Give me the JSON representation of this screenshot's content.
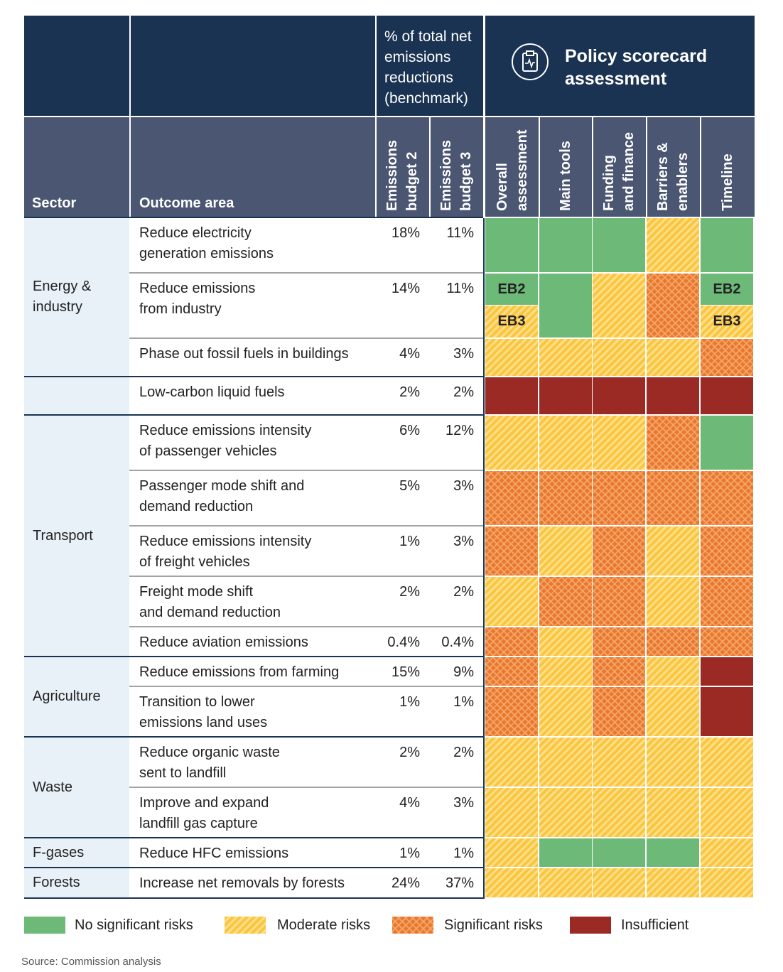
{
  "header": {
    "benchmark": [
      "% of total net",
      "emissions",
      "reductions",
      "(benchmark)"
    ],
    "scorecard": [
      "Policy scorecard",
      "assessment"
    ],
    "columns": [
      [
        "Sector"
      ],
      [
        "Outcome area"
      ],
      [
        "Emissions",
        "budget 2"
      ],
      [
        "Emissions",
        "budget 3"
      ],
      [
        "Overall",
        "assessment"
      ],
      [
        "Main tools"
      ],
      [
        "Funding",
        "and finance"
      ],
      [
        "Barriers &",
        "enablers"
      ],
      [
        "Timeline"
      ]
    ]
  },
  "sectors": [
    {
      "name": [
        "Energy &",
        "industry"
      ],
      "rows": [
        {
          "outcome": [
            "Reduce electricity",
            "generation emissions"
          ],
          "eb2": "18%",
          "eb3": "11%",
          "assessment": [
            0,
            0,
            0,
            1,
            0
          ]
        },
        {
          "outcome": [
            "Reduce emissions",
            "from industry"
          ],
          "eb2": "14%",
          "eb3": "11%",
          "assessment": [
            [
              {
                "label": "EB2",
                "rating": 0
              },
              {
                "label": "EB3",
                "rating": 1
              }
            ],
            0,
            1,
            2,
            [
              {
                "label": "EB2",
                "rating": 0
              },
              {
                "label": "EB3",
                "rating": 1
              }
            ]
          ]
        },
        {
          "outcome": [
            "Phase out fossil fuels in buildings"
          ],
          "eb2": "4%",
          "eb3": "3%",
          "assessment": [
            1,
            1,
            1,
            1,
            2
          ]
        }
      ]
    },
    {
      "rows": [
        {
          "outcome": [
            "Low-carbon liquid fuels"
          ],
          "eb2": "2%",
          "eb3": "2%",
          "assessment": [
            3,
            3,
            3,
            3,
            3
          ]
        }
      ]
    },
    {
      "name": [
        "Transport"
      ],
      "rows": [
        {
          "outcome": [
            "Reduce emissions intensity",
            "of passenger vehicles"
          ],
          "eb2": "6%",
          "eb3": "12%",
          "assessment": [
            1,
            1,
            1,
            2,
            0
          ]
        },
        {
          "outcome": [
            "Passenger mode shift and",
            "demand reduction"
          ],
          "eb2": "5%",
          "eb3": "3%",
          "assessment": [
            2,
            2,
            2,
            2,
            2
          ]
        },
        {
          "outcome": [
            "Reduce emissions intensity",
            "of freight vehicles"
          ],
          "eb2": "1%",
          "eb3": "3%",
          "assessment": [
            2,
            1,
            2,
            1,
            2
          ]
        },
        {
          "outcome": [
            "Freight mode shift",
            "and demand reduction"
          ],
          "eb2": "2%",
          "eb3": "2%",
          "assessment": [
            1,
            2,
            2,
            1,
            2
          ]
        },
        {
          "outcome": [
            "Reduce aviation emissions"
          ],
          "eb2": "0.4%",
          "eb3": "0.4%",
          "assessment": [
            2,
            1,
            2,
            2,
            2
          ]
        }
      ]
    },
    {
      "name": [
        "Agriculture"
      ],
      "rows": [
        {
          "outcome": [
            "Reduce emissions from farming"
          ],
          "eb2": "15%",
          "eb3": "9%",
          "assessment": [
            2,
            1,
            2,
            1,
            3
          ]
        },
        {
          "outcome": [
            "Transition to lower",
            "emissions land uses"
          ],
          "eb2": "1%",
          "eb3": "1%",
          "assessment": [
            2,
            1,
            2,
            1,
            3
          ]
        }
      ]
    },
    {
      "name": [
        "Waste"
      ],
      "rows": [
        {
          "outcome": [
            "Reduce organic waste",
            "sent to landfill"
          ],
          "eb2": "2%",
          "eb3": "2%",
          "assessment": [
            1,
            1,
            1,
            1,
            1
          ]
        },
        {
          "outcome": [
            "Improve and expand",
            "landfill gas capture"
          ],
          "eb2": "4%",
          "eb3": "3%",
          "assessment": [
            1,
            1,
            1,
            1,
            1
          ]
        }
      ]
    },
    {
      "name": [
        "F-gases"
      ],
      "rows": [
        {
          "outcome": [
            "Reduce HFC emissions"
          ],
          "eb2": "1%",
          "eb3": "1%",
          "assessment": [
            1,
            0,
            0,
            0,
            1
          ]
        }
      ]
    },
    {
      "name": [
        "Forests"
      ],
      "rows": [
        {
          "outcome": [
            "Increase net removals by forests"
          ],
          "eb2": "24%",
          "eb3": "37%",
          "assessment": [
            1,
            1,
            1,
            1,
            1
          ]
        }
      ]
    }
  ],
  "legend": [
    {
      "label": "No significant risks"
    },
    {
      "label": "Moderate risks"
    },
    {
      "label": "Significant risks"
    },
    {
      "label": "Insufficient"
    }
  ],
  "source": "Source: Commission analysis"
}
